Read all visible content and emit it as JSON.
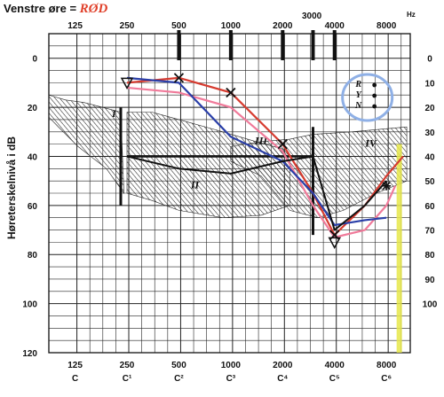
{
  "page": {
    "title": "Venstre øre",
    "title_annotation": "RØD",
    "hz_unit": "Hz",
    "ylabel": "Høreterskelnivå i dB",
    "note_3000": "3000"
  },
  "chart_data": {
    "type": "line",
    "title": "Venstre øre",
    "xlabel": "Hz",
    "ylabel": "Høreterskelnivå i dB",
    "x_scale": "log2",
    "xlim": [
      88,
      11000
    ],
    "ylim": [
      120,
      -10
    ],
    "grid": true,
    "x_top_ticks": [
      {
        "value": 125,
        "label": "125"
      },
      {
        "value": 250,
        "label": "250"
      },
      {
        "value": 500,
        "label": "500"
      },
      {
        "value": 1000,
        "label": "1000"
      },
      {
        "value": 2000,
        "label": "2000"
      },
      {
        "value": 4000,
        "label": "4000"
      },
      {
        "value": 8000,
        "label": "8000"
      }
    ],
    "x_bottom_ticks": [
      {
        "value": 125,
        "label": "125",
        "note": "C"
      },
      {
        "value": 250,
        "label": "250",
        "note": "C¹"
      },
      {
        "value": 500,
        "label": "500",
        "note": "C²"
      },
      {
        "value": 1000,
        "label": "1000",
        "note": "C³"
      },
      {
        "value": 2000,
        "label": "2000",
        "note": "C⁴"
      },
      {
        "value": 4000,
        "label": "4000",
        "note": "C⁵"
      },
      {
        "value": 8000,
        "label": "8000",
        "note": "C⁶"
      }
    ],
    "y_ticks": [
      0,
      20,
      40,
      60,
      80,
      100,
      120
    ],
    "y_right_ticks": [
      0,
      10,
      20,
      30,
      40,
      50,
      60,
      70,
      80,
      90,
      100
    ],
    "y_right_labels": [
      "0",
      "10",
      "20",
      "30",
      "40",
      "50",
      "60",
      "70",
      "80",
      "90",
      "100"
    ],
    "regions": [
      {
        "name": "I",
        "points": [
          [
            88,
            15
          ],
          [
            110,
            17
          ],
          [
            140,
            18
          ],
          [
            180,
            20
          ],
          [
            230,
            22
          ],
          [
            240,
            55
          ],
          [
            190,
            45
          ],
          [
            130,
            36
          ],
          [
            100,
            28
          ],
          [
            88,
            24
          ]
        ]
      },
      {
        "name": "II",
        "points": [
          [
            250,
            22
          ],
          [
            350,
            22
          ],
          [
            500,
            25
          ],
          [
            900,
            30
          ],
          [
            1400,
            34
          ],
          [
            2000,
            37
          ],
          [
            2200,
            42
          ],
          [
            2200,
            60
          ],
          [
            1500,
            64
          ],
          [
            900,
            65
          ],
          [
            500,
            62
          ],
          [
            350,
            58
          ],
          [
            250,
            55
          ]
        ]
      },
      {
        "name": "III",
        "points": [
          [
            1000,
            36
          ],
          [
            1500,
            34
          ],
          [
            2200,
            33
          ],
          [
            3000,
            31
          ],
          [
            5000,
            30
          ],
          [
            10500,
            28
          ],
          [
            10500,
            50
          ],
          [
            7000,
            55
          ],
          [
            4500,
            62
          ],
          [
            3200,
            65
          ],
          [
            2200,
            62
          ],
          [
            1500,
            48
          ],
          [
            1000,
            42
          ]
        ]
      }
    ],
    "region_labels": [
      {
        "label": "I",
        "x": 210,
        "y": 24
      },
      {
        "label": "II",
        "x": 620,
        "y": 53
      },
      {
        "label": "III",
        "x": 1500,
        "y": 35
      },
      {
        "label": "IV",
        "x": 6500,
        "y": 36
      }
    ],
    "hline_from": 250,
    "hline_to": 3000,
    "hline_y": 40,
    "vlines": [
      {
        "x": 230,
        "y1": 20,
        "y2": 60
      },
      {
        "x": 3000,
        "y1": 28,
        "y2": 72
      }
    ],
    "series": [
      {
        "color": "#d63b2f",
        "values": [
          [
            250,
            10
          ],
          [
            500,
            8
          ],
          [
            1000,
            14
          ],
          [
            2000,
            35
          ],
          [
            3000,
            55
          ],
          [
            4000,
            72
          ],
          [
            6000,
            60
          ],
          [
            8000,
            48
          ],
          [
            10000,
            40
          ]
        ]
      },
      {
        "color": "#f07a9a",
        "values": [
          [
            250,
            12
          ],
          [
            500,
            14
          ],
          [
            1000,
            20
          ],
          [
            2000,
            38
          ],
          [
            3000,
            60
          ],
          [
            4000,
            73
          ],
          [
            6000,
            70
          ],
          [
            8000,
            60
          ],
          [
            9000,
            52
          ]
        ]
      },
      {
        "color": "#2a3fa8",
        "values": [
          [
            250,
            8
          ],
          [
            500,
            10
          ],
          [
            1000,
            32
          ],
          [
            2000,
            42
          ],
          [
            3000,
            55
          ],
          [
            4000,
            68
          ],
          [
            6000,
            66
          ],
          [
            8000,
            65
          ]
        ]
      },
      {
        "color": "#111111",
        "values": [
          [
            250,
            40
          ],
          [
            500,
            45
          ],
          [
            1000,
            47
          ],
          [
            2000,
            42
          ],
          [
            3000,
            40
          ],
          [
            4000,
            70
          ],
          [
            6000,
            60
          ],
          [
            8000,
            50
          ]
        ]
      }
    ],
    "markers": [
      {
        "symbol": "x",
        "x": 500,
        "y": 8
      },
      {
        "symbol": "x",
        "x": 1000,
        "y": 14
      },
      {
        "symbol": "x",
        "x": 2000,
        "y": 35
      },
      {
        "symbol": "x",
        "x": 4000,
        "y": 72
      },
      {
        "symbol": "*",
        "x": 8000,
        "y": 52
      },
      {
        "symbol": "triangle",
        "x": 250,
        "y": 10
      },
      {
        "symbol": "triangle",
        "x": 4000,
        "y": 75
      }
    ],
    "tuning_fork_x": [
      500,
      1000,
      2000,
      3000,
      4000
    ],
    "highlight_line": {
      "x": 9500,
      "color": "#e6e84a"
    },
    "highlight_circle": {
      "x": 6200,
      "y": 16,
      "color": "#8fb0e6",
      "text_color": "#88cc44",
      "letters": [
        "R",
        "Y",
        "N"
      ]
    },
    "colors": {
      "grid": "#222222",
      "hatch": "#222222"
    }
  }
}
